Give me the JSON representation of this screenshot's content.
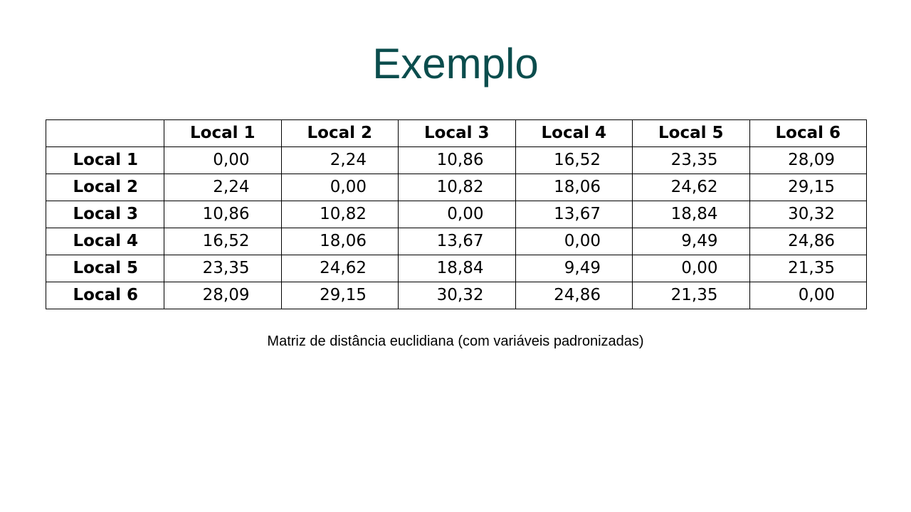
{
  "slide": {
    "title": "Exemplo",
    "caption": "Matriz de distância euclidiana (com variáveis padronizadas)"
  },
  "matrix": {
    "corner": "",
    "columns": [
      "Local 1",
      "Local 2",
      "Local 3",
      "Local 4",
      "Local 5",
      "Local 6"
    ],
    "rows": [
      {
        "label": "Local 1",
        "values": [
          "0,00",
          "2,24",
          "10,86",
          "16,52",
          "23,35",
          "28,09"
        ]
      },
      {
        "label": "Local 2",
        "values": [
          "2,24",
          "0,00",
          "10,82",
          "18,06",
          "24,62",
          "29,15"
        ]
      },
      {
        "label": "Local 3",
        "values": [
          "10,86",
          "10,82",
          "0,00",
          "13,67",
          "18,84",
          "30,32"
        ]
      },
      {
        "label": "Local 4",
        "values": [
          "16,52",
          "18,06",
          "13,67",
          "0,00",
          "9,49",
          "24,86"
        ]
      },
      {
        "label": "Local 5",
        "values": [
          "23,35",
          "24,62",
          "18,84",
          "9,49",
          "0,00",
          "21,35"
        ]
      },
      {
        "label": "Local 6",
        "values": [
          "28,09",
          "29,15",
          "30,32",
          "24,86",
          "21,35",
          "0,00"
        ]
      }
    ]
  }
}
